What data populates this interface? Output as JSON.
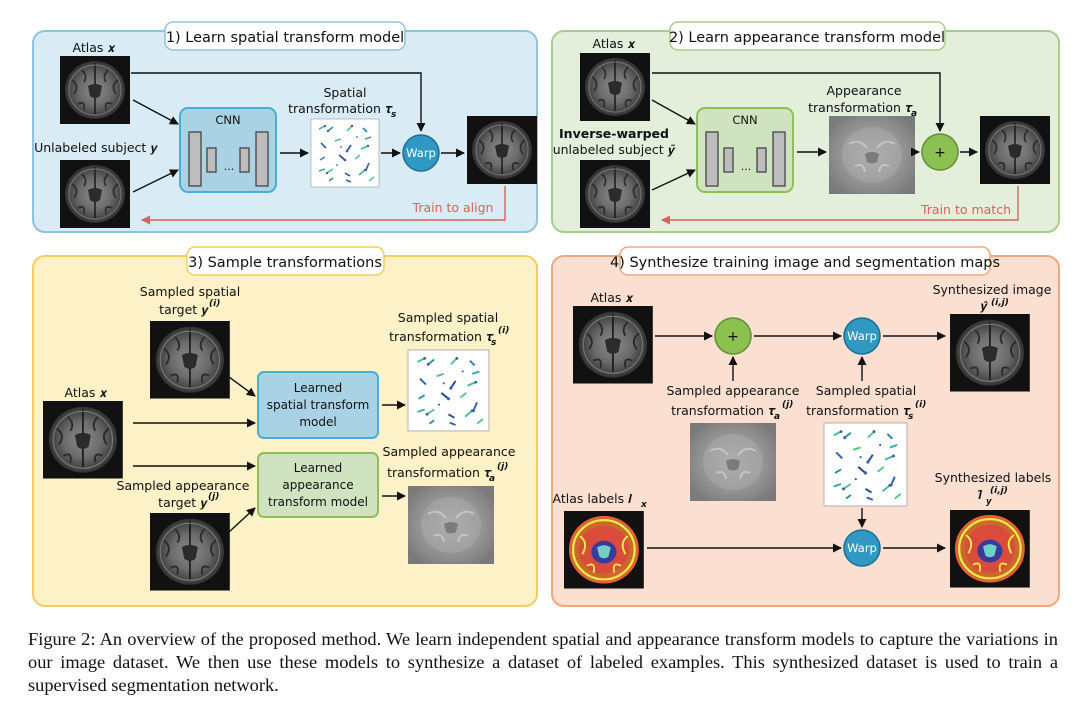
{
  "panels": {
    "p1": {
      "title": "1) Learn spatial transform model"
    },
    "p2": {
      "title": "2) Learn appearance transform model"
    },
    "p3": {
      "title": "3) Sample transformations"
    },
    "p4": {
      "title": "4) Synthesize training image and segmentation maps"
    }
  },
  "labels": {
    "atlas_x": "Atlas 𝒙",
    "unlabeled_subject": "Unlabeled subject 𝒚",
    "cnn": "CNN",
    "cnn_dots": "...",
    "spatial_transformation_l1": "Spatial",
    "spatial_transformation_l2": "transformation 𝝉",
    "sub_s": "s",
    "sub_a": "a",
    "warp": "Warp",
    "plus": "+",
    "train_to_align": "Train to align",
    "inverse_warped": "Inverse-warped",
    "unlabeled_subject_tilde": "unlabeled subject 𝒚̃",
    "appearance_l1": "Appearance",
    "appearance_l2": "transformation 𝝉",
    "train_to_match": "Train to match",
    "sampled_spatial_target_l1": "Sampled spatial",
    "sampled_spatial_target_l2": "target 𝒚",
    "sup_i": "(i)",
    "sup_j": "(j)",
    "sup_ij": "(i,j)",
    "sampled_spatial_transform_l1": "Sampled spatial",
    "sampled_spatial_transform_l2": "transformation 𝝉",
    "learned_spatial_l1": "Learned",
    "learned_spatial_l2": "spatial transform",
    "learned_spatial_l3": "model",
    "sampled_appearance_target_l1": "Sampled appearance",
    "sampled_appearance_target_l2": "target 𝒚",
    "learned_appearance_l1": "Learned",
    "learned_appearance_l2": "appearance",
    "learned_appearance_l3": "transform model",
    "sampled_appearance_transform_l1": "Sampled appearance",
    "sampled_appearance_transform_l2": "transformation 𝝉",
    "synth_image_l1": "Synthesized image",
    "synth_image_l2": "𝒚̂",
    "atlas_labels": "Atlas labels 𝒍",
    "sub_x": "x",
    "synth_labels_l1": "Synthesized labels",
    "synth_labels_l2": "𝒍̂",
    "sub_y": "y"
  },
  "caption": "Figure 2: An overview of the proposed method. We learn independent spatial and appearance transform models to capture the variations in our image dataset. We then use these models to synthesize a dataset of labeled examples. This synthesized dataset is used to train a supervised segmentation network.",
  "colors": {
    "panel1_fill": "#d9ecf5",
    "panel1_stroke": "#8fc3de",
    "panel2_fill": "#e3eedb",
    "panel2_stroke": "#a9cd8c",
    "panel3_fill": "#fdf1c8",
    "panel3_stroke": "#f2cf5d",
    "panel4_fill": "#fbe0d2",
    "panel4_stroke": "#f0a77a",
    "warp_fill": "#2f98c3",
    "plus_fill": "#8cc152",
    "train_arrow": "#d9625a"
  }
}
